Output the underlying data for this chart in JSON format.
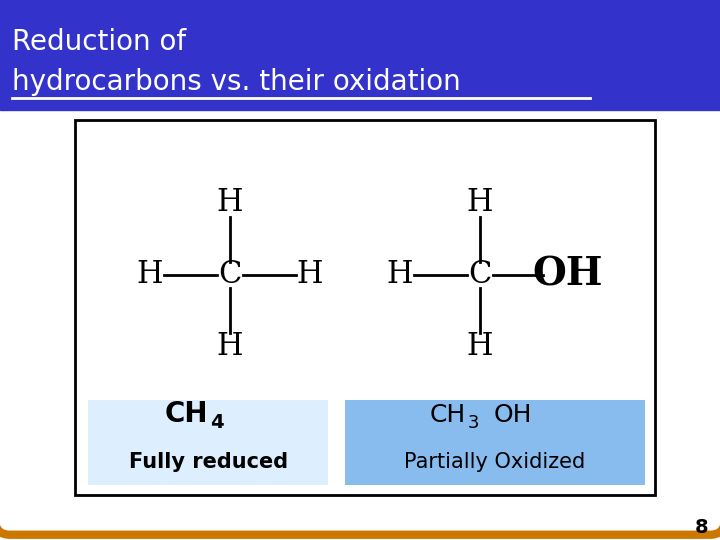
{
  "title_line1": "Reduction of",
  "title_line2": "hydrocarbons vs. their oxidation",
  "title_bg_color": "#3333cc",
  "title_text_color": "#ffffff",
  "title_underline_color": "#ffffff",
  "bg_color": "#ffffff",
  "panel_bg_color": "#ffffff",
  "panel_border_color": "#000000",
  "outer_border_color": "#cc7700",
  "page_number": "8",
  "label_bg_left": "#ddeeff",
  "label_bg_right": "#88bbee",
  "font_size_title": 20,
  "font_size_atoms": 22,
  "font_size_label": 18
}
